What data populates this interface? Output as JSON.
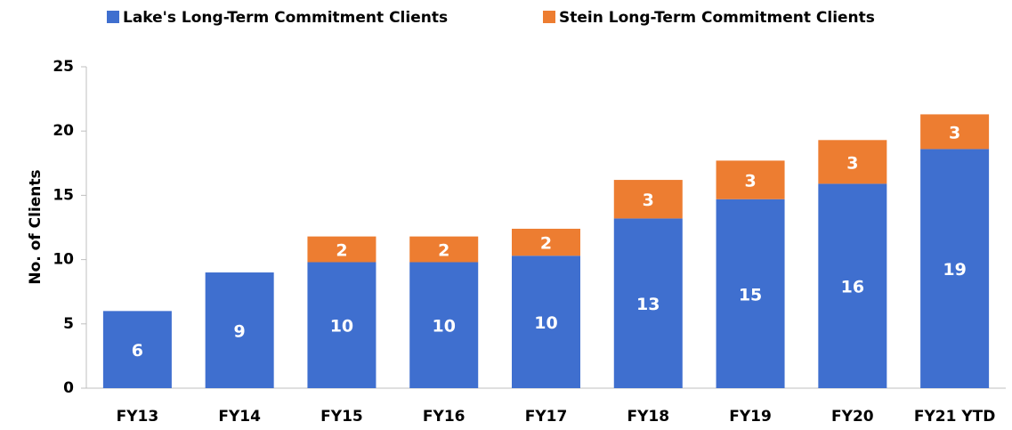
{
  "chart_data": {
    "type": "stacked-bar",
    "y_label": "No. of Clients",
    "categories": [
      "FY13",
      "FY14",
      "FY15",
      "FY16",
      "FY17",
      "FY18",
      "FY19",
      "FY20",
      "FY21 YTD"
    ],
    "series": [
      {
        "name": "Lake's Long-Term Commitment Clients",
        "color": "#3f6fcf",
        "values": [
          6,
          9,
          9.8,
          9.8,
          10.3,
          13.2,
          14.7,
          15.9,
          18.6
        ],
        "value_labels": [
          "6",
          "9",
          "10",
          "10",
          "10",
          "13",
          "15",
          "16",
          "19"
        ]
      },
      {
        "name": "Stein Long-Term Commitment Clients",
        "color": "#ed7d31",
        "values": [
          null,
          null,
          2.0,
          2.0,
          2.1,
          3.0,
          3.0,
          3.4,
          2.7
        ],
        "value_labels": [
          null,
          null,
          "2",
          "2",
          "2",
          "3",
          "3",
          "3",
          "3"
        ]
      }
    ],
    "ylim": [
      0,
      25
    ],
    "yticks": [
      0,
      5,
      10,
      15,
      20,
      25
    ],
    "grid": false,
    "legend": "top"
  }
}
